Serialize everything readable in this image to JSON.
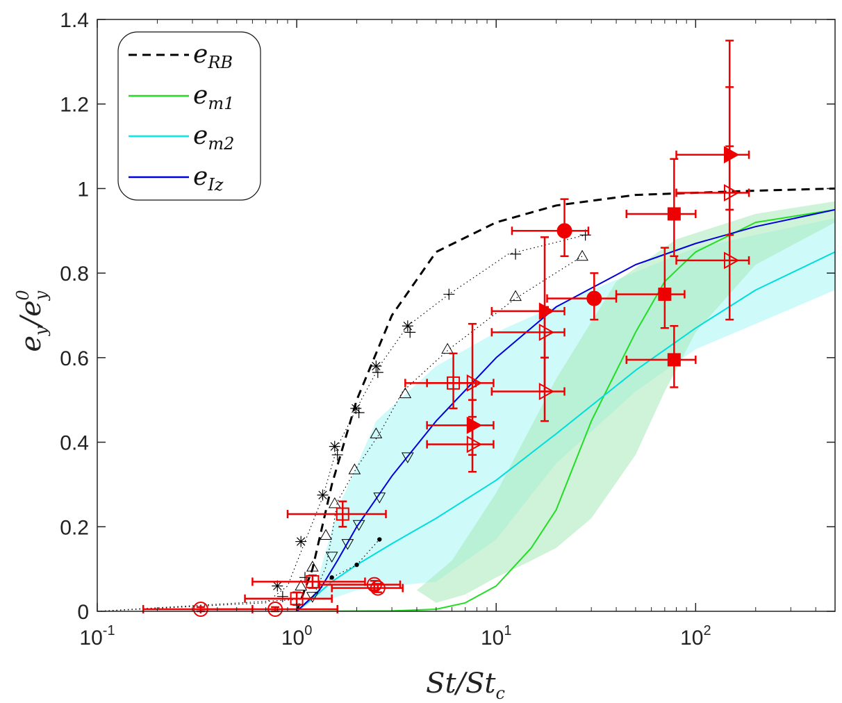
{
  "chart_data": {
    "type": "scatter",
    "xscale": "log",
    "xlim": [
      0.1,
      500
    ],
    "ylim": [
      0,
      1.4
    ],
    "grid": false,
    "legend_placement": "top-left",
    "x_ticks": [
      {
        "value": 0.1,
        "base": "10",
        "exp": "-1"
      },
      {
        "value": 1,
        "base": "10",
        "exp": "0"
      },
      {
        "value": 10,
        "base": "10",
        "exp": "1"
      },
      {
        "value": 100,
        "base": "10",
        "exp": "2"
      }
    ],
    "y_ticks": [
      {
        "value": 0,
        "label": "0"
      },
      {
        "value": 0.2,
        "label": "0.2"
      },
      {
        "value": 0.4,
        "label": "0.4"
      },
      {
        "value": 0.6,
        "label": "0.6"
      },
      {
        "value": 0.8,
        "label": "0.8"
      },
      {
        "value": 1.0,
        "label": "1"
      },
      {
        "value": 1.2,
        "label": "1.2"
      },
      {
        "value": 1.4,
        "label": "1.4"
      }
    ],
    "xlabel": {
      "base": "St/St",
      "sub": "c"
    },
    "ylabel": {
      "base": "e",
      "sub": "y",
      "mid": "/e",
      "sub2": "y",
      "sup2": "0"
    },
    "legend": [
      {
        "base": "e",
        "sub": "RB",
        "color": "#000000",
        "dash": "12,8"
      },
      {
        "base": "e",
        "sub": "m1",
        "color": "#22dd22",
        "dash": ""
      },
      {
        "base": "e",
        "sub": "m2",
        "color": "#00eeee",
        "dash": ""
      },
      {
        "base": "e",
        "sub": "Iz",
        "color": "#0000dd",
        "dash": ""
      }
    ],
    "bands": [
      {
        "color": "#a6f5f5",
        "opacity": 0.55,
        "upper": [
          [
            1.2,
            0.03
          ],
          [
            1.6,
            0.24
          ],
          [
            2.5,
            0.45
          ],
          [
            5,
            0.58
          ],
          [
            10,
            0.66
          ],
          [
            30,
            0.76
          ],
          [
            100,
            0.86
          ],
          [
            500,
            0.93
          ]
        ],
        "lower": [
          [
            500,
            0.76
          ],
          [
            200,
            0.68
          ],
          [
            100,
            0.62
          ],
          [
            50,
            0.52
          ],
          [
            20,
            0.35
          ],
          [
            10,
            0.17
          ],
          [
            5,
            0.07
          ],
          [
            3,
            0.06
          ],
          [
            2,
            0.05
          ],
          [
            1.5,
            0.03
          ]
        ]
      },
      {
        "color": "#a6eab8",
        "opacity": 0.55,
        "upper": [
          [
            4,
            0.05
          ],
          [
            6,
            0.12
          ],
          [
            10,
            0.28
          ],
          [
            20,
            0.55
          ],
          [
            40,
            0.78
          ],
          [
            80,
            0.88
          ],
          [
            200,
            0.94
          ],
          [
            500,
            0.97
          ]
        ],
        "lower": [
          [
            500,
            0.92
          ],
          [
            200,
            0.82
          ],
          [
            100,
            0.66
          ],
          [
            70,
            0.52
          ],
          [
            50,
            0.37
          ],
          [
            30,
            0.22
          ],
          [
            20,
            0.15
          ],
          [
            15,
            0.12
          ],
          [
            10,
            0.08
          ],
          [
            7,
            0.04
          ],
          [
            5,
            0.02
          ]
        ]
      }
    ],
    "series": [
      {
        "color": "#000000",
        "dash": "12,8",
        "width": 3,
        "points": [
          [
            1,
            0
          ],
          [
            1.2,
            0.1
          ],
          [
            1.5,
            0.3
          ],
          [
            2,
            0.5
          ],
          [
            3,
            0.7
          ],
          [
            5,
            0.85
          ],
          [
            10,
            0.92
          ],
          [
            20,
            0.96
          ],
          [
            50,
            0.985
          ],
          [
            100,
            0.99
          ],
          [
            200,
            0.995
          ],
          [
            500,
            1.0
          ]
        ]
      },
      {
        "color": "#22dd22",
        "dash": "",
        "width": 2,
        "points": [
          [
            1,
            0
          ],
          [
            3,
            0.001
          ],
          [
            5,
            0.005
          ],
          [
            7,
            0.02
          ],
          [
            10,
            0.06
          ],
          [
            15,
            0.15
          ],
          [
            20,
            0.24
          ],
          [
            30,
            0.45
          ],
          [
            50,
            0.66
          ],
          [
            70,
            0.78
          ],
          [
            100,
            0.85
          ],
          [
            200,
            0.92
          ],
          [
            500,
            0.95
          ]
        ]
      },
      {
        "color": "#00dddd",
        "dash": "",
        "width": 2,
        "points": [
          [
            1,
            0
          ],
          [
            1.2,
            0.03
          ],
          [
            1.5,
            0.07
          ],
          [
            2,
            0.11
          ],
          [
            3,
            0.16
          ],
          [
            5,
            0.22
          ],
          [
            10,
            0.31
          ],
          [
            20,
            0.42
          ],
          [
            50,
            0.57
          ],
          [
            100,
            0.67
          ],
          [
            200,
            0.76
          ],
          [
            500,
            0.85
          ]
        ]
      },
      {
        "color": "#0000dd",
        "dash": "",
        "width": 2,
        "points": [
          [
            1,
            0
          ],
          [
            1.3,
            0.05
          ],
          [
            1.6,
            0.12
          ],
          [
            2,
            0.2
          ],
          [
            3,
            0.32
          ],
          [
            5,
            0.45
          ],
          [
            10,
            0.6
          ],
          [
            20,
            0.72
          ],
          [
            50,
            0.82
          ],
          [
            100,
            0.87
          ],
          [
            200,
            0.91
          ],
          [
            500,
            0.95
          ]
        ]
      },
      {
        "color": "#000000",
        "dash": "1.5,4",
        "width": 1.2,
        "points": [
          [
            0.1,
            0
          ],
          [
            0.7,
            0.02
          ],
          [
            0.9,
            0.06
          ],
          [
            1.1,
            0.165
          ],
          [
            1.35,
            0.27
          ],
          [
            1.6,
            0.39
          ],
          [
            2.0,
            0.48
          ],
          [
            2.6,
            0.58
          ],
          [
            3.6,
            0.675
          ],
          [
            5.8,
            0.75
          ],
          [
            11.5,
            0.845
          ],
          [
            28,
            0.89
          ]
        ]
      },
      {
        "color": "#000000",
        "dash": "1.5,4",
        "width": 1.2,
        "points": [
          [
            0.1,
            0
          ],
          [
            1.2,
            0.03
          ],
          [
            1.4,
            0.105
          ],
          [
            1.5,
            0.18
          ],
          [
            1.6,
            0.26
          ],
          [
            2.0,
            0.34
          ],
          [
            2.6,
            0.42
          ],
          [
            3.4,
            0.52
          ],
          [
            5.8,
            0.62
          ],
          [
            12.5,
            0.74
          ],
          [
            27,
            0.84
          ]
        ]
      },
      {
        "color": "#000000",
        "dash": "1.5,4",
        "width": 1.2,
        "points": [
          [
            1,
            0
          ],
          [
            1.5,
            0.08
          ],
          [
            2,
            0.11
          ],
          [
            2.6,
            0.17
          ]
        ]
      }
    ],
    "markers": [
      {
        "shape": "star",
        "fill": "none",
        "color": "#000000",
        "size": 8,
        "points": [
          [
            0.8,
            0.06
          ],
          [
            1.05,
            0.165
          ],
          [
            1.35,
            0.275
          ],
          [
            1.55,
            0.39
          ],
          [
            1.98,
            0.48
          ],
          [
            2.5,
            0.58
          ],
          [
            3.6,
            0.675
          ]
        ]
      },
      {
        "shape": "plus",
        "fill": "none",
        "color": "#000000",
        "size": 8,
        "points": [
          [
            0.85,
            0.035
          ],
          [
            1.1,
            0.08
          ],
          [
            1.6,
            0.37
          ],
          [
            2.05,
            0.47
          ],
          [
            2.55,
            0.565
          ],
          [
            3.7,
            0.66
          ],
          [
            5.8,
            0.75
          ],
          [
            12.5,
            0.845
          ],
          [
            28,
            0.89
          ]
        ]
      },
      {
        "shape": "tri-up",
        "fill": "none",
        "color": "#000000",
        "size": 8,
        "points": [
          [
            1.05,
            0.06
          ],
          [
            1.2,
            0.105
          ],
          [
            1.4,
            0.18
          ],
          [
            1.55,
            0.255
          ],
          [
            1.95,
            0.335
          ],
          [
            2.5,
            0.42
          ],
          [
            3.5,
            0.515
          ],
          [
            5.7,
            0.62
          ],
          [
            12.5,
            0.745
          ],
          [
            27,
            0.84
          ]
        ]
      },
      {
        "shape": "tri-down",
        "fill": "none",
        "color": "#000000",
        "size": 8,
        "points": [
          [
            1.2,
            0.035
          ],
          [
            1.5,
            0.13
          ],
          [
            1.8,
            0.16
          ],
          [
            2.05,
            0.205
          ],
          [
            2.6,
            0.27
          ],
          [
            3.6,
            0.365
          ]
        ]
      },
      {
        "shape": "dot",
        "fill": "#000000",
        "color": "#000000",
        "size": 3.2,
        "points": [
          [
            1.5,
            0.08
          ],
          [
            2.0,
            0.11
          ],
          [
            2.6,
            0.17
          ]
        ]
      },
      {
        "shape": "circle",
        "fill": "none",
        "color": "#ee0000",
        "size": 10,
        "points": [
          [
            0.33,
            0.005
          ],
          [
            0.78,
            0.005
          ],
          [
            2.45,
            0.063
          ],
          [
            2.55,
            0.055
          ]
        ],
        "xerr": [
          [
            0.17,
            0.6
          ],
          [
            0.33,
            1.6
          ],
          [
            1.3,
            3.3
          ],
          [
            1.5,
            3.4
          ]
        ],
        "yerr": [
          [
            0,
            0.01
          ],
          [
            0,
            0.01
          ],
          [
            0.05,
            0.072
          ],
          [
            0.045,
            0.065
          ]
        ]
      },
      {
        "shape": "square",
        "fill": "none",
        "color": "#ee0000",
        "size": 8.5,
        "points": [
          [
            1.0,
            0.03
          ],
          [
            1.2,
            0.07
          ],
          [
            1.7,
            0.23
          ],
          [
            6.1,
            0.54
          ]
        ],
        "xerr": [
          [
            0.55,
            1.5
          ],
          [
            0.6,
            2.2
          ],
          [
            0.9,
            2.8
          ],
          [
            3.5,
            7.9
          ]
        ],
        "yerr": [
          [
            0.015,
            0.045
          ],
          [
            0.055,
            0.085
          ],
          [
            0.2,
            0.26
          ],
          [
            0.48,
            0.61
          ]
        ]
      },
      {
        "shape": "circle",
        "fill": "#ee0000",
        "color": "#ee0000",
        "size": 10,
        "points": [
          [
            22,
            0.9
          ],
          [
            31,
            0.74
          ]
        ],
        "xerr": [
          [
            12,
            29
          ],
          [
            18,
            40
          ]
        ],
        "yerr": [
          [
            0.84,
            0.975
          ],
          [
            0.69,
            0.8
          ]
        ]
      },
      {
        "shape": "square",
        "fill": "#ee0000",
        "color": "#ee0000",
        "size": 8.5,
        "points": [
          [
            78,
            0.94
          ],
          [
            70,
            0.75
          ],
          [
            78,
            0.595
          ]
        ],
        "xerr": [
          [
            45,
            100
          ],
          [
            40,
            88
          ],
          [
            45,
            100
          ]
        ],
        "yerr": [
          [
            0.84,
            1.07
          ],
          [
            0.67,
            0.86
          ],
          [
            0.53,
            0.675
          ]
        ]
      },
      {
        "shape": "tri-right",
        "fill": "#ee0000",
        "color": "#ee0000",
        "size": 12,
        "points": [
          [
            7.6,
            0.44
          ],
          [
            17.5,
            0.71
          ],
          [
            148,
            1.08
          ]
        ],
        "xerr": [
          [
            4.5,
            9.7
          ],
          [
            9.5,
            22
          ],
          [
            80,
            185
          ]
        ],
        "yerr": [
          [
            0.37,
            0.5
          ],
          [
            0.52,
            0.885
          ],
          [
            0.95,
            1.24
          ]
        ]
      },
      {
        "shape": "tri-right",
        "fill": "none",
        "color": "#ee0000",
        "size": 12,
        "points": [
          [
            7.6,
            0.54
          ],
          [
            7.6,
            0.395
          ],
          [
            17.5,
            0.52
          ],
          [
            17.5,
            0.66
          ],
          [
            148,
            0.83
          ],
          [
            148,
            0.99
          ]
        ],
        "xerr": [
          [
            4.5,
            9.7
          ],
          [
            4.5,
            9.7
          ],
          [
            9.5,
            22
          ],
          [
            9.5,
            22
          ],
          [
            80,
            185
          ],
          [
            80,
            185
          ]
        ],
        "yerr": [
          [
            0.46,
            0.68
          ],
          [
            0.33,
            0.44
          ],
          [
            0.45,
            0.6
          ],
          [
            0.6,
            0.72
          ],
          [
            0.69,
            1.35
          ],
          [
            0.89,
            1.1
          ]
        ]
      }
    ]
  }
}
